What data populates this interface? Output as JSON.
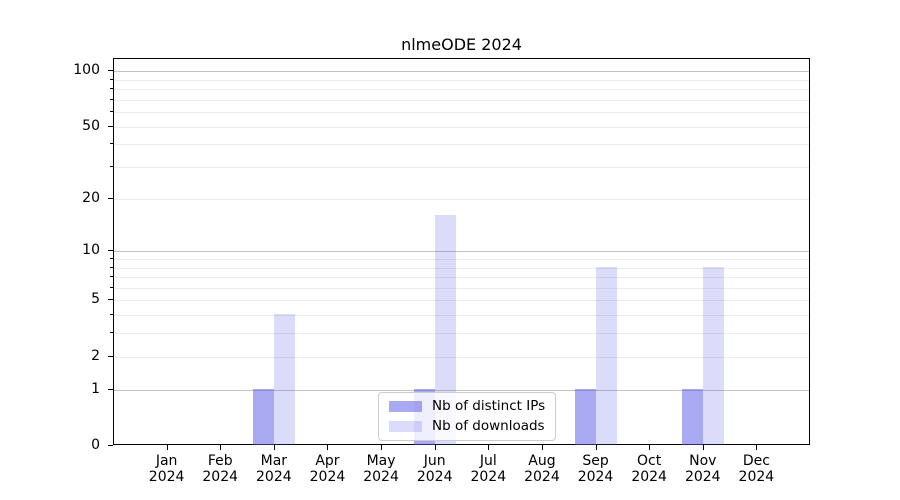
{
  "title": "nlmeODE 2024",
  "colors": {
    "ips_bar": "rgba(85,85,230,0.5)",
    "downloads_bar": "rgba(85,85,230,0.21)",
    "grid_major": "#c3c3c3",
    "grid_minor": "#ececec",
    "spine": "#000000"
  },
  "chart_data": {
    "type": "bar",
    "title": "nlmeODE 2024",
    "categories": [
      "Jan 2024",
      "Feb 2024",
      "Mar 2024",
      "Apr 2024",
      "May 2024",
      "Jun 2024",
      "Jul 2024",
      "Aug 2024",
      "Sep 2024",
      "Oct 2024",
      "Nov 2024",
      "Dec 2024"
    ],
    "series": [
      {
        "name": "Nb of distinct IPs",
        "color_key": "ips_bar",
        "values": [
          0,
          0,
          1,
          0,
          0,
          1,
          0,
          0,
          1,
          0,
          1,
          0
        ]
      },
      {
        "name": "Nb of downloads",
        "color_key": "downloads_bar",
        "values": [
          0,
          0,
          4,
          0,
          0,
          16,
          0,
          0,
          8,
          0,
          8,
          0
        ]
      }
    ],
    "xlabel": "",
    "ylabel": "",
    "y_scale": "log1p",
    "y_ticks_labeled": [
      0,
      1,
      2,
      5,
      10,
      20,
      50,
      100
    ],
    "y_ticks_minor": [
      3,
      4,
      6,
      7,
      8,
      9,
      30,
      40,
      60,
      70,
      80,
      90
    ],
    "y_grid_major": [
      1,
      10,
      100
    ],
    "y_grid_minor": [
      2,
      3,
      4,
      5,
      6,
      7,
      8,
      9,
      20,
      30,
      40,
      50,
      60,
      70,
      80,
      90
    ],
    "ylim": [
      0,
      117
    ],
    "grid": "horizontal",
    "legend_position": "lower center"
  }
}
